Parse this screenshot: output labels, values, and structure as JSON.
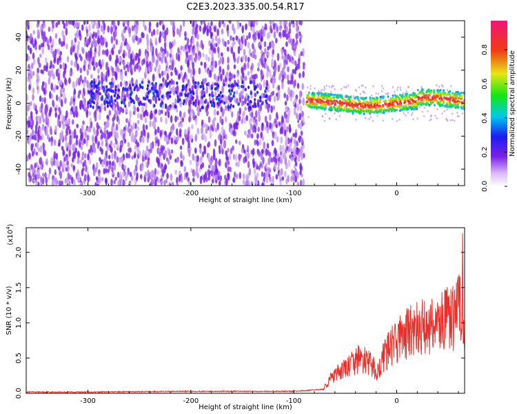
{
  "title": "C2E3.2023.335.00.54.R17",
  "colors": {
    "snr_line": "#e8302a",
    "spectrum_dots": "#7a20e6",
    "axis": "#000000"
  },
  "chart_data": [
    {
      "type": "heatmap",
      "xlabel": "Height of straight line (km)",
      "ylabel": "Frequency (Hz)",
      "xlim": [
        -360,
        66
      ],
      "ylim": [
        -50,
        50
      ],
      "x_ticks": [
        -300,
        -200,
        -100,
        0
      ],
      "x_tick_labels": [
        "-300",
        "-200",
        "-100",
        "0"
      ],
      "y_ticks": [
        -40,
        -20,
        0,
        20,
        40
      ],
      "y_tick_labels": [
        "-40",
        "-20",
        "0",
        "20",
        "40"
      ],
      "colorbar": {
        "label": "Normalized spectral amplitude",
        "range": [
          0.0,
          0.97
        ],
        "ticks": [
          0.0,
          0.2,
          0.4,
          0.6,
          0.8
        ],
        "tick_labels": [
          "0.0",
          "0.2",
          "0.4",
          "0.6",
          "0.8"
        ],
        "colormap": "rainbow (white-violet-blue-cyan-green-yellow-red-magenta)"
      },
      "features": [
        {
          "description": "broadband low-amplitude noise",
          "x_range": [
            -360,
            -90
          ],
          "freq_range": [
            -50,
            50
          ],
          "amplitude": 0.05
        },
        {
          "description": "weak signal band",
          "x_range": [
            -300,
            -120
          ],
          "freq_center": 5,
          "amplitude": 0.25
        },
        {
          "description": "strong narrow echo band",
          "x_range": [
            -90,
            66
          ],
          "freq_center": 0,
          "freq_halfwidth": 5,
          "amplitude_max": 0.9
        }
      ]
    },
    {
      "type": "line",
      "xlabel": "Height of straight line (km)",
      "ylabel": "SNR (10 * v/v)",
      "scale_label": "(x10",
      "scale_exponent": "4",
      "scale_close": ")",
      "xlim": [
        -360,
        66
      ],
      "ylim": [
        0,
        2.35
      ],
      "x_ticks": [
        -300,
        -200,
        -100,
        0
      ],
      "x_tick_labels": [
        "-300",
        "-200",
        "-100",
        "0"
      ],
      "y_ticks": [
        0.0,
        0.5,
        1.0,
        1.5,
        2.0
      ],
      "y_tick_labels": [
        "0.0",
        "0.5",
        "1.0",
        "1.5",
        "2.0"
      ],
      "series": [
        {
          "x": [
            -360,
            -300,
            -200,
            -100,
            -72,
            -65,
            -55,
            -45,
            -35,
            -25,
            -18,
            -12,
            -5,
            0,
            10,
            20,
            30,
            40,
            50,
            58,
            62,
            64,
            66
          ],
          "y": [
            0.01,
            0.01,
            0.02,
            0.02,
            0.05,
            0.2,
            0.3,
            0.4,
            0.5,
            0.4,
            0.3,
            0.55,
            0.65,
            0.75,
            0.85,
            0.9,
            0.95,
            1.0,
            1.05,
            1.1,
            1.3,
            1.6,
            0.6
          ]
        }
      ]
    }
  ]
}
